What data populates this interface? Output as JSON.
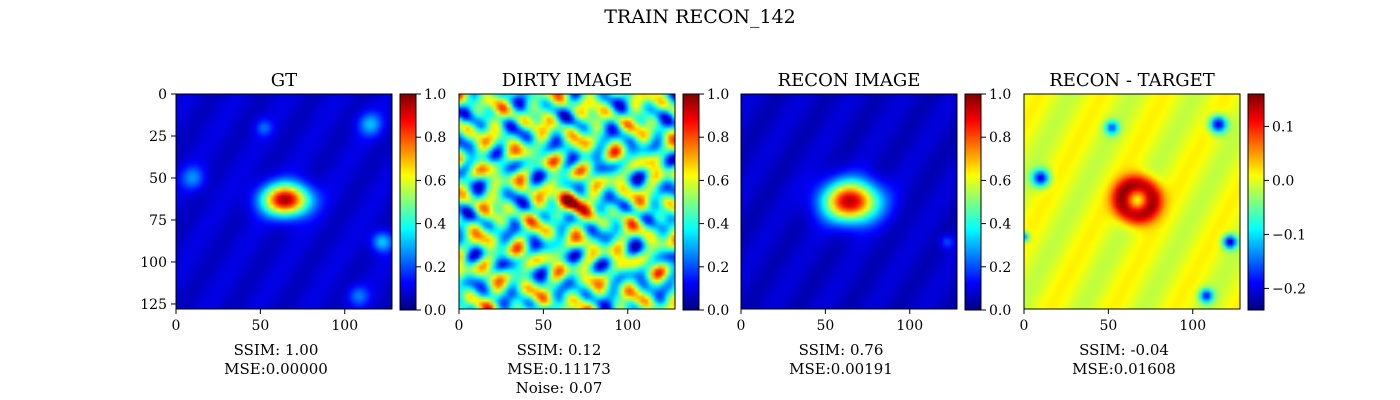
{
  "figure": {
    "title": "TRAIN RECON_142"
  },
  "colormap": "jet",
  "chart_data": [
    {
      "type": "heatmap",
      "title": "GT",
      "x_ticks": [
        0,
        50,
        100
      ],
      "y_ticks": [
        0,
        25,
        50,
        75,
        100,
        125
      ],
      "extent": [
        0,
        128
      ],
      "colorbar": {
        "range": [
          0.0,
          1.0
        ],
        "ticks": [
          "0.0",
          "0.2",
          "0.4",
          "0.6",
          "0.8",
          "1.0"
        ],
        "tick_values": [
          0.0,
          0.2,
          0.4,
          0.6,
          0.8,
          1.0
        ]
      },
      "caption": [
        "SSIM: 1.00",
        "MSE:0.00000"
      ],
      "content": {
        "kind": "source",
        "background": 0.08,
        "source": {
          "x": 65,
          "y": 63,
          "rx": 16,
          "ry": 11,
          "peak": 0.97
        },
        "blobs": [
          {
            "x": 115,
            "y": 18,
            "r": 7,
            "v": 0.22
          },
          {
            "x": 10,
            "y": 50,
            "r": 7,
            "v": 0.18
          },
          {
            "x": 122,
            "y": 88,
            "r": 6,
            "v": 0.26
          },
          {
            "x": 52,
            "y": 20,
            "r": 5,
            "v": 0.14
          },
          {
            "x": 108,
            "y": 120,
            "r": 6,
            "v": 0.16
          }
        ]
      }
    },
    {
      "type": "heatmap",
      "title": "DIRTY IMAGE",
      "x_ticks": [
        0,
        50,
        100
      ],
      "y_ticks": [],
      "extent": [
        0,
        128
      ],
      "colorbar": {
        "range": [
          0.0,
          1.0
        ],
        "ticks": [
          "0.0",
          "0.2",
          "0.4",
          "0.6",
          "0.8",
          "1.0"
        ],
        "tick_values": [
          0.0,
          0.2,
          0.4,
          0.6,
          0.8,
          1.0
        ]
      },
      "caption": [
        "SSIM: 0.12",
        "MSE:0.11173",
        "Noise: 0.07"
      ],
      "content": {
        "kind": "noisy",
        "background": 0.45,
        "source": {
          "x": 66,
          "y": 64,
          "rx": 8,
          "ry": 8,
          "peak": 0.88
        }
      }
    },
    {
      "type": "heatmap",
      "title": "RECON IMAGE",
      "x_ticks": [
        0,
        50,
        100
      ],
      "y_ticks": [],
      "extent": [
        0,
        128
      ],
      "colorbar": {
        "range": [
          0.0,
          1.0
        ],
        "ticks": [
          "0.0",
          "0.2",
          "0.4",
          "0.6",
          "0.8",
          "1.0"
        ],
        "tick_values": [
          0.0,
          0.2,
          0.4,
          0.6,
          0.8,
          1.0
        ]
      },
      "caption": [
        "SSIM: 0.76",
        "MSE:0.00191"
      ],
      "content": {
        "kind": "source",
        "background": 0.07,
        "source": {
          "x": 65,
          "y": 64,
          "rx": 19,
          "ry": 14,
          "peak": 0.95
        },
        "blobs": [
          {
            "x": 122,
            "y": 88,
            "r": 4,
            "v": 0.14
          }
        ]
      }
    },
    {
      "type": "heatmap",
      "title": "RECON - TARGET",
      "x_ticks": [
        0,
        50,
        100
      ],
      "y_ticks": [],
      "extent": [
        0,
        128
      ],
      "colorbar": {
        "range": [
          -0.24,
          0.16
        ],
        "ticks": [
          "0.1",
          "0.0",
          "−0.1",
          "−0.2"
        ],
        "tick_values": [
          0.1,
          0.0,
          -0.1,
          -0.2
        ]
      },
      "caption": [
        "SSIM: -0.04",
        "MSE:0.01608"
      ],
      "content": {
        "kind": "residual",
        "background": 0.0,
        "ring": {
          "x": 67,
          "y": 63,
          "r": 15,
          "peak": 0.15,
          "center": 0.0
        },
        "blobs": [
          {
            "x": 115,
            "y": 18,
            "r": 5,
            "v": -0.22
          },
          {
            "x": 10,
            "y": 50,
            "r": 5,
            "v": -0.2
          },
          {
            "x": 122,
            "y": 88,
            "r": 4,
            "v": -0.22
          },
          {
            "x": 52,
            "y": 20,
            "r": 4,
            "v": -0.15
          },
          {
            "x": 108,
            "y": 120,
            "r": 4,
            "v": -0.18
          },
          {
            "x": 0,
            "y": 85,
            "r": 3,
            "v": -0.15
          }
        ]
      }
    }
  ]
}
